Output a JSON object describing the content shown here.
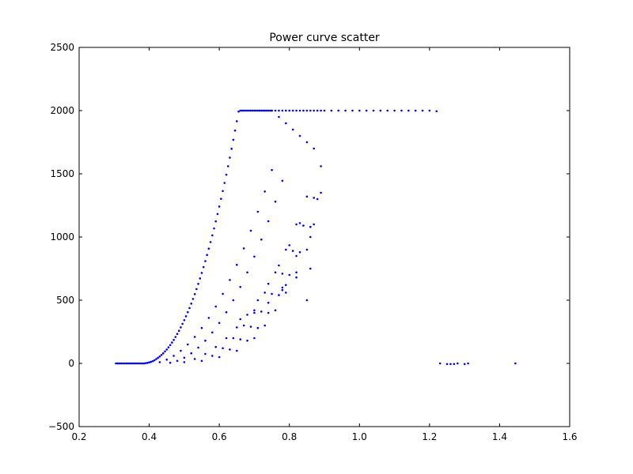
{
  "chart_data": {
    "type": "scatter",
    "title": "Power curve scatter",
    "xlabel": "",
    "ylabel": "",
    "xlim": [
      0.2,
      1.6
    ],
    "ylim": [
      -500,
      2500
    ],
    "xticks": [
      "0.2",
      "0.4",
      "0.6",
      "0.8",
      "1.0",
      "1.2",
      "1.4",
      "1.6"
    ],
    "yticks": [
      "−500",
      "0",
      "500",
      "1000",
      "1500",
      "2000",
      "2500"
    ],
    "grid": false,
    "legend": "none",
    "marker_color": "#0000ff",
    "series": [
      {
        "x": [
          0.305,
          0.31,
          0.315,
          0.32,
          0.325,
          0.33,
          0.335,
          0.34,
          0.345,
          0.35,
          0.355,
          0.36,
          0.365,
          0.37,
          0.375,
          0.38,
          0.385,
          0.39,
          0.395,
          0.4,
          0.405,
          0.41,
          0.415,
          0.42,
          0.425,
          0.43,
          0.435,
          0.44,
          0.445,
          0.45,
          0.455,
          0.46,
          0.465,
          0.47,
          0.475,
          0.48,
          0.485,
          0.49,
          0.495,
          0.5,
          0.505,
          0.51,
          0.515,
          0.52,
          0.525,
          0.53,
          0.535,
          0.54,
          0.545,
          0.55,
          0.555,
          0.56,
          0.565,
          0.57,
          0.575,
          0.58,
          0.585,
          0.59,
          0.595,
          0.6,
          0.605,
          0.61,
          0.615,
          0.62,
          0.625,
          0.63,
          0.635,
          0.64,
          0.645,
          0.65,
          0.655,
          0.66,
          0.665,
          0.67,
          0.675,
          0.68,
          0.685,
          0.69,
          0.695,
          0.7,
          0.705,
          0.71,
          0.715,
          0.72,
          0.725,
          0.73,
          0.735,
          0.74,
          0.745,
          0.75,
          0.43,
          0.45,
          0.47,
          0.49,
          0.51,
          0.53,
          0.55,
          0.57,
          0.59,
          0.61,
          0.63,
          0.65,
          0.67,
          0.69,
          0.71,
          0.73,
          0.75,
          0.46,
          0.48,
          0.5,
          0.52,
          0.54,
          0.56,
          0.58,
          0.6,
          0.62,
          0.64,
          0.66,
          0.68,
          0.7,
          0.72,
          0.74,
          0.76,
          0.78,
          0.5,
          0.53,
          0.56,
          0.59,
          0.62,
          0.65,
          0.68,
          0.71,
          0.74,
          0.77,
          0.8,
          0.83,
          0.55,
          0.58,
          0.61,
          0.64,
          0.67,
          0.7,
          0.73,
          0.76,
          0.79,
          0.82,
          0.85,
          0.6,
          0.63,
          0.66,
          0.69,
          0.72,
          0.75,
          0.78,
          0.81,
          0.84,
          0.87,
          0.65,
          0.68,
          0.71,
          0.74,
          0.77,
          0.8,
          0.83,
          0.86,
          0.88,
          0.7,
          0.73,
          0.76,
          0.79,
          0.82,
          0.85,
          0.87,
          0.89,
          0.75,
          0.76,
          0.77,
          0.78,
          0.79,
          0.8,
          0.81,
          0.82,
          0.83,
          0.84,
          0.85,
          0.86,
          0.87,
          0.88,
          0.89,
          0.9,
          0.92,
          0.94,
          0.96,
          0.98,
          1.0,
          1.02,
          1.04,
          1.06,
          1.08,
          1.1,
          1.12,
          1.14,
          1.16,
          1.18,
          1.2,
          1.22,
          0.77,
          0.79,
          0.81,
          0.83,
          0.85,
          0.87,
          0.89,
          0.66,
          0.7,
          0.74,
          0.78,
          0.82,
          0.86,
          0.78,
          0.82,
          0.86,
          0.79,
          0.85,
          1.23,
          1.25,
          1.26,
          1.27,
          1.28,
          1.3,
          1.31,
          1.445
        ],
        "y": [
          0,
          0,
          0,
          0,
          0,
          0,
          0,
          0,
          0,
          0,
          0,
          0,
          0,
          0,
          0,
          0,
          0,
          2,
          4,
          8,
          12,
          18,
          25,
          34,
          44,
          55,
          67,
          80,
          95,
          110,
          127,
          145,
          165,
          186,
          209,
          233,
          258,
          285,
          313,
          342,
          373,
          405,
          438,
          473,
          510,
          548,
          588,
          629,
          672,
          716,
          762,
          809,
          858,
          908,
          960,
          1013,
          1068,
          1124,
          1182,
          1241,
          1302,
          1364,
          1428,
          1493,
          1560,
          1628,
          1698,
          1769,
          1842,
          1916,
          1992,
          2000,
          2000,
          2000,
          2000,
          2000,
          2000,
          2000,
          2000,
          2000,
          2000,
          2000,
          2000,
          2000,
          2000,
          2000,
          2000,
          2000,
          2000,
          2000,
          10,
          30,
          60,
          100,
          150,
          210,
          280,
          360,
          450,
          550,
          660,
          780,
          910,
          1050,
          1200,
          1360,
          1530,
          5,
          20,
          45,
          80,
          125,
          180,
          245,
          320,
          405,
          500,
          605,
          720,
          845,
          980,
          1125,
          1280,
          1445,
          10,
          35,
          75,
          130,
          200,
          285,
          385,
          500,
          630,
          775,
          935,
          1110,
          20,
          60,
          120,
          200,
          300,
          420,
          560,
          720,
          900,
          1100,
          1320,
          50,
          110,
          190,
          290,
          410,
          550,
          710,
          890,
          1090,
          1310,
          100,
          180,
          280,
          400,
          540,
          700,
          880,
          1080,
          1300,
          200,
          300,
          420,
          560,
          720,
          900,
          1100,
          1350,
          2000,
          2000,
          2000,
          2000,
          2000,
          2000,
          2000,
          2000,
          2000,
          2000,
          2000,
          2000,
          2000,
          2000,
          2000,
          2000,
          2000,
          2000,
          2000,
          2000,
          2000,
          2000,
          2000,
          2000,
          2000,
          2000,
          2000,
          2000,
          2000,
          2000,
          2000,
          1995,
          1950,
          1900,
          1850,
          1800,
          1750,
          1700,
          1560,
          350,
          400,
          480,
          600,
          680,
          750,
          580,
          850,
          1000,
          620,
          500,
          0,
          -5,
          -5,
          -5,
          0,
          -5,
          0,
          0
        ]
      }
    ]
  }
}
